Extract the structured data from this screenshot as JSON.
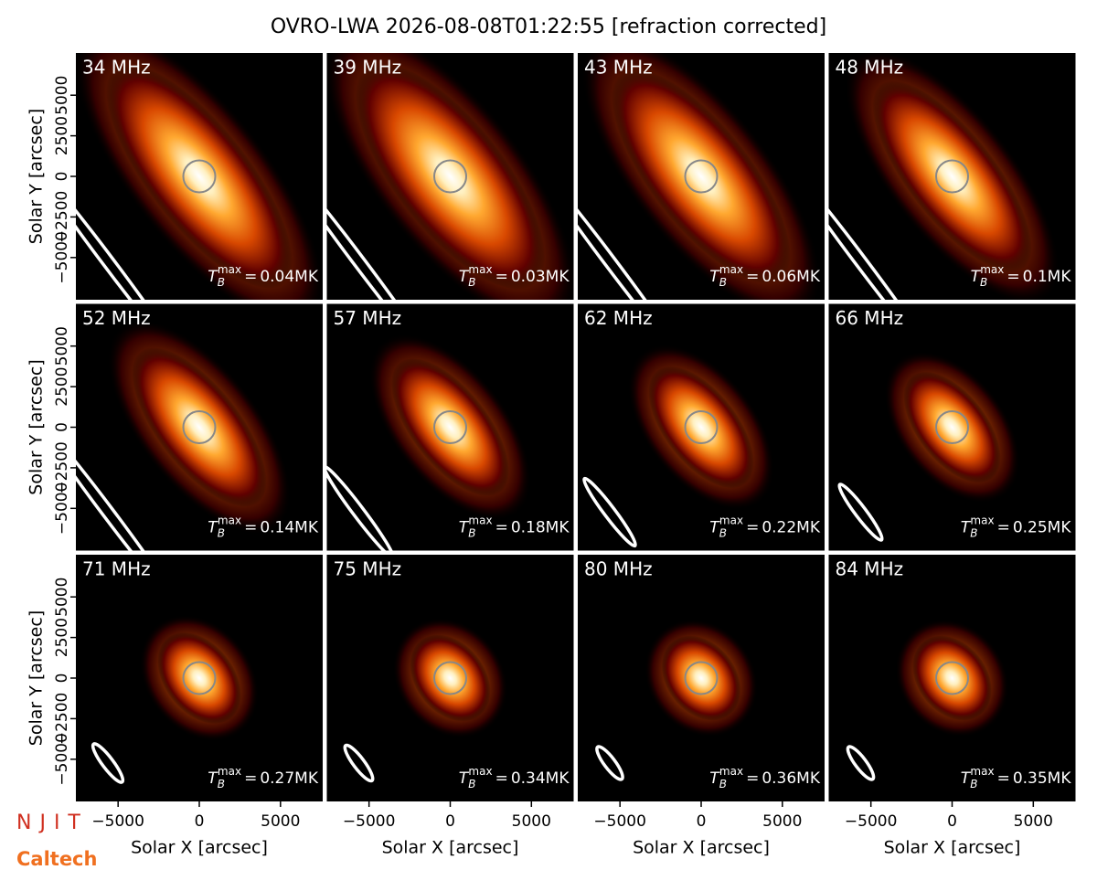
{
  "figure": {
    "title": "OVRO-LWA 2026-08-08T01:22:55 [refraction corrected]",
    "xlabel": "Solar X [arcsec]",
    "ylabel": "Solar Y [arcsec]",
    "xlim": [
      -7600,
      7600
    ],
    "ylim": [
      -7600,
      7600
    ],
    "xticks": [
      {
        "value": -5000,
        "label": "−5000"
      },
      0,
      5000
    ],
    "yticks": [
      {
        "value": -5000,
        "label": "−5000"
      },
      {
        "value": -2500,
        "label": "−2500"
      },
      0,
      2500,
      5000
    ],
    "tmax_symbol": {
      "base": "T",
      "sub": "B",
      "sup": "max",
      "relation": "="
    },
    "logos": [
      "NJIT",
      "Caltech"
    ]
  },
  "chart_data": [
    {
      "type": "image",
      "label": "34 MHz",
      "tb_max": {
        "value": 0.04,
        "label": "0.04MK"
      }
    },
    {
      "type": "image",
      "label": "39 MHz",
      "tb_max": {
        "value": 0.03,
        "label": "0.03MK"
      }
    },
    {
      "type": "image",
      "label": "43 MHz",
      "tb_max": {
        "value": 0.06,
        "label": "0.06MK"
      }
    },
    {
      "type": "image",
      "label": "48 MHz",
      "tb_max": {
        "value": 0.1,
        "label": "0.1MK"
      }
    },
    {
      "type": "image",
      "label": "52 MHz",
      "tb_max": {
        "value": 0.14,
        "label": "0.14MK"
      }
    },
    {
      "type": "image",
      "label": "57 MHz",
      "tb_max": {
        "value": 0.18,
        "label": "0.18MK"
      }
    },
    {
      "type": "image",
      "label": "62 MHz",
      "tb_max": {
        "value": 0.22,
        "label": "0.22MK"
      }
    },
    {
      "type": "image",
      "label": "66 MHz",
      "tb_max": {
        "value": 0.25,
        "label": "0.25MK"
      }
    },
    {
      "type": "image",
      "label": "71 MHz",
      "tb_max": {
        "value": 0.27,
        "label": "0.27MK"
      }
    },
    {
      "type": "image",
      "label": "75 MHz",
      "tb_max": {
        "value": 0.34,
        "label": "0.34MK"
      }
    },
    {
      "type": "image",
      "label": "80 MHz",
      "tb_max": {
        "value": 0.36,
        "label": "0.36MK"
      }
    },
    {
      "type": "image",
      "label": "84 MHz",
      "tb_max": {
        "value": 0.35,
        "label": "0.35MK"
      }
    }
  ]
}
